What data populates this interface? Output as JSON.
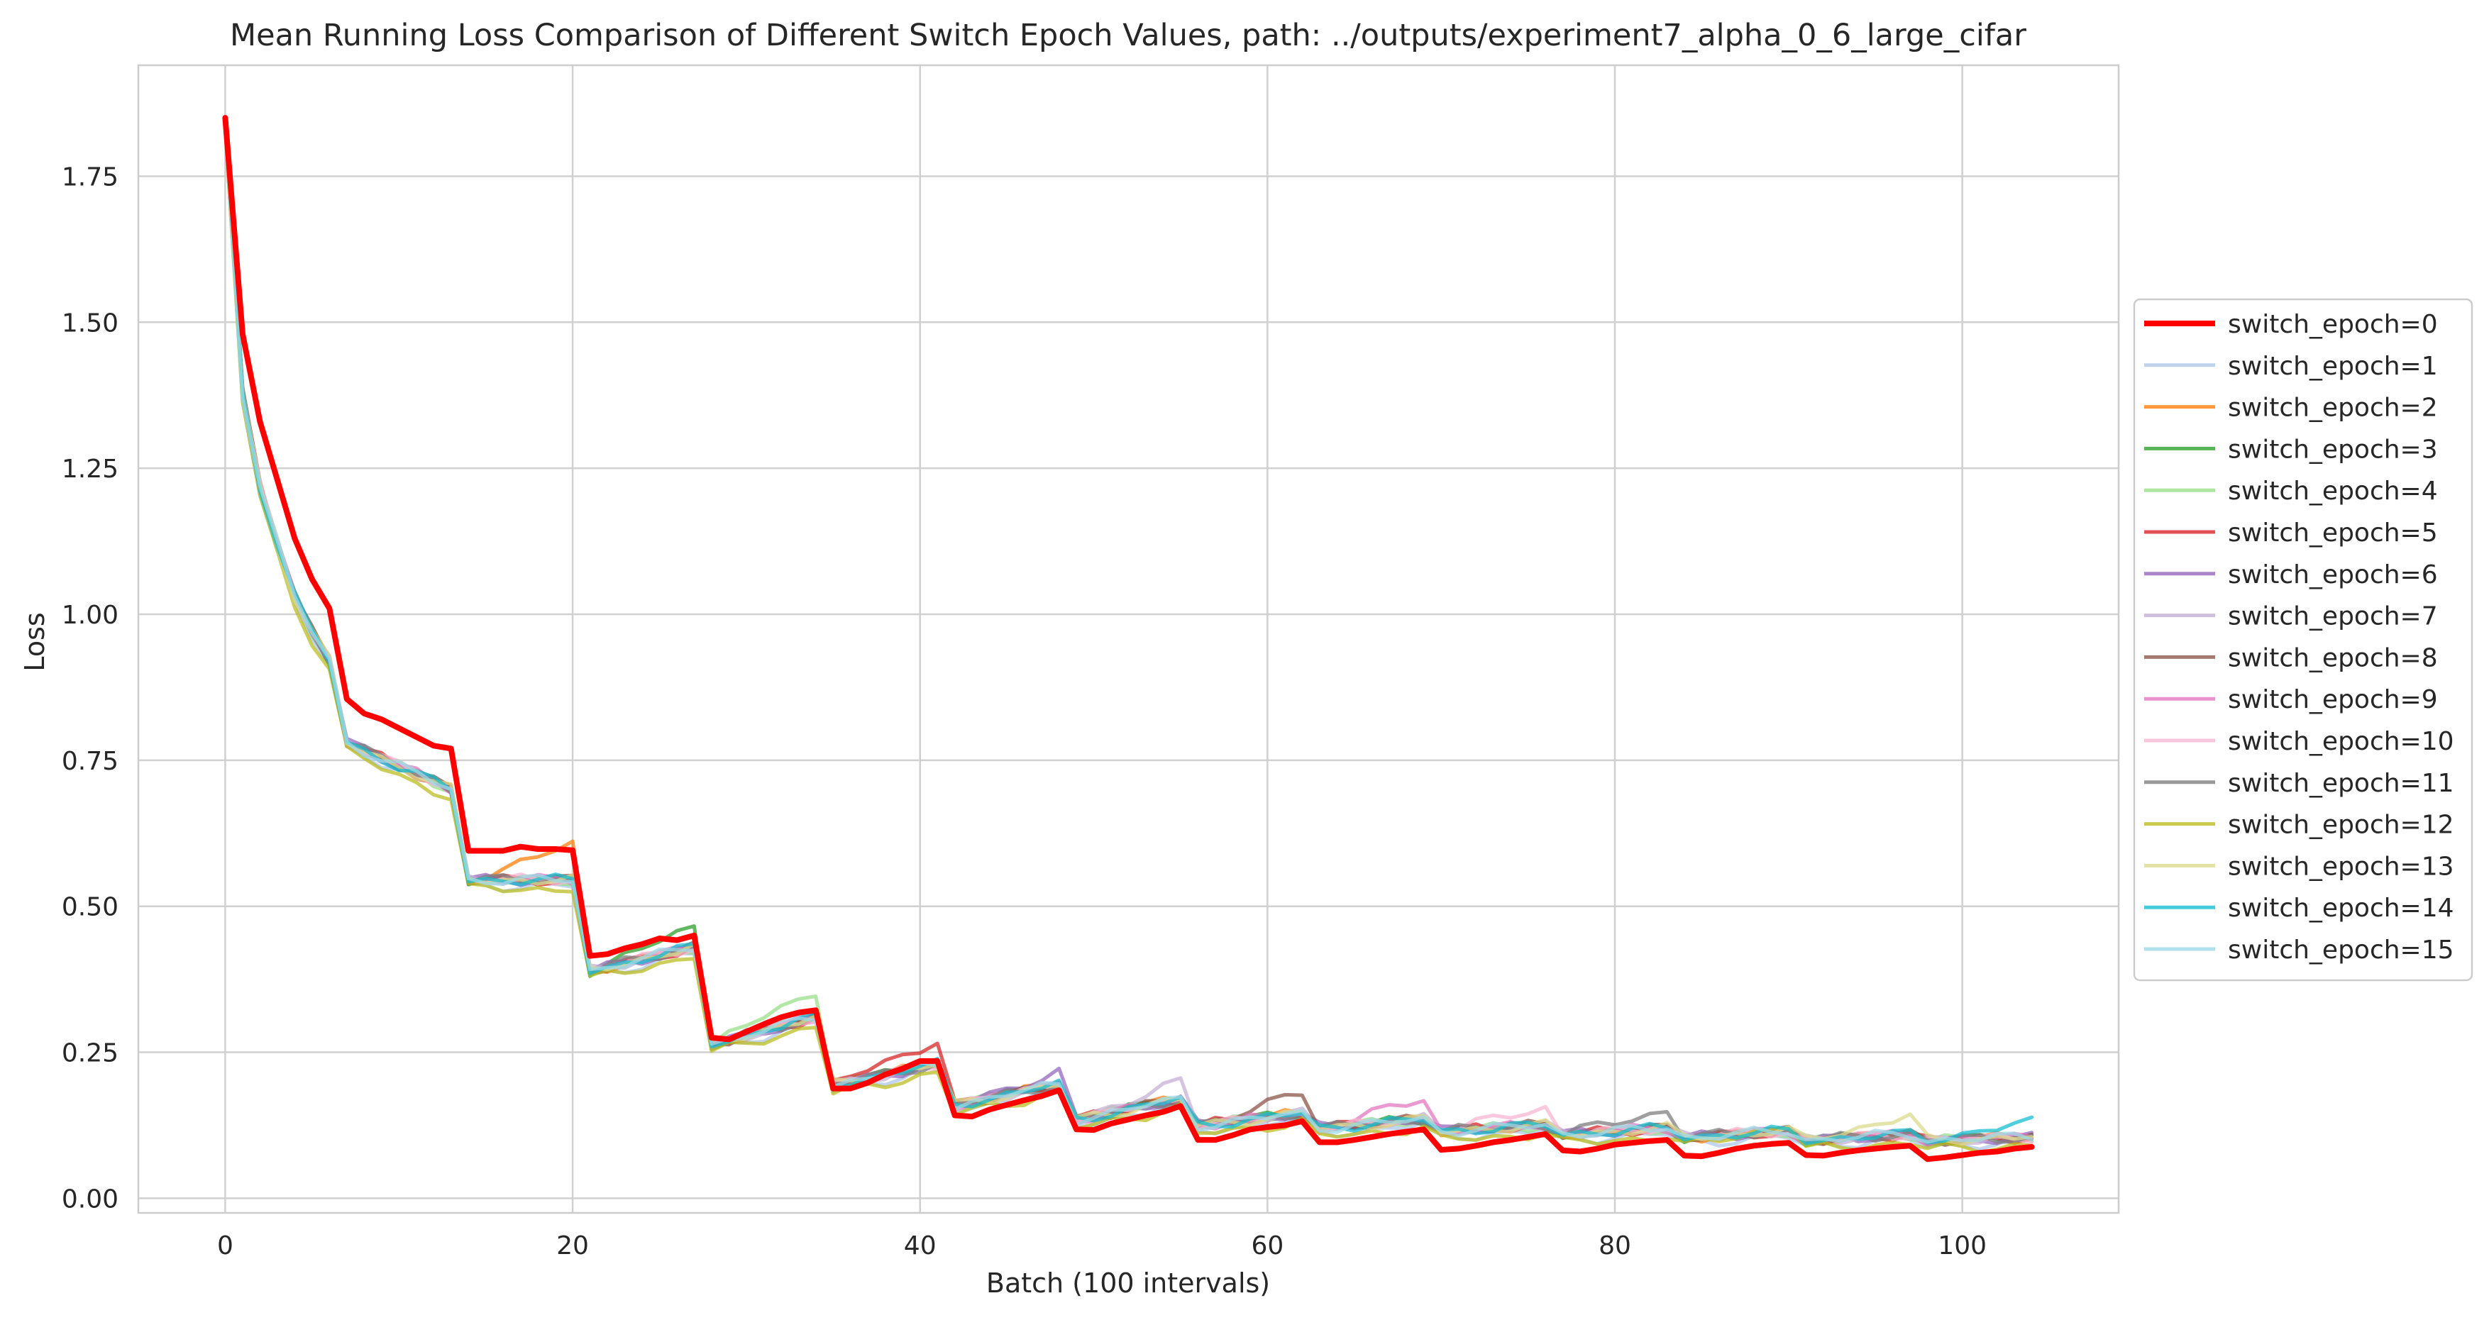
{
  "chart_data": {
    "type": "line",
    "title": "Mean Running Loss Comparison of Different Switch Epoch Values, path: ../outputs/experiment7_alpha_0_6_large_cifar",
    "xlabel": "Batch (100 intervals)",
    "ylabel": "Loss",
    "xlim": [
      -5,
      109
    ],
    "ylim": [
      -0.025,
      1.94
    ],
    "xticks": [
      0,
      20,
      40,
      60,
      80,
      100
    ],
    "yticks": [
      0.0,
      0.25,
      0.5,
      0.75,
      1.0,
      1.25,
      1.5,
      1.75
    ],
    "xtick_labels": [
      "0",
      "20",
      "40",
      "60",
      "80",
      "100"
    ],
    "ytick_labels": [
      "0.00",
      "0.25",
      "0.50",
      "0.75",
      "1.00",
      "1.25",
      "1.50",
      "1.75"
    ],
    "grid": true,
    "legend_position": "center-right outside",
    "background": "#ffffff",
    "grid_color": "#d0d0d0",
    "epoch_length": 7,
    "num_points": 105,
    "base_curve": [
      [
        0,
        1.84
      ],
      [
        1,
        1.38
      ],
      [
        2,
        1.22
      ],
      [
        3,
        1.12
      ],
      [
        4,
        1.03
      ],
      [
        5,
        0.97
      ],
      [
        6,
        0.92
      ],
      [
        7,
        0.78
      ],
      [
        13,
        0.7
      ],
      [
        14,
        0.545
      ],
      [
        20,
        0.545
      ],
      [
        21,
        0.39
      ],
      [
        27,
        0.43
      ],
      [
        28,
        0.265
      ],
      [
        34,
        0.31
      ],
      [
        35,
        0.195
      ],
      [
        41,
        0.23
      ],
      [
        42,
        0.16
      ],
      [
        48,
        0.195
      ],
      [
        49,
        0.135
      ],
      [
        55,
        0.17
      ],
      [
        56,
        0.125
      ],
      [
        62,
        0.145
      ],
      [
        63,
        0.12
      ],
      [
        69,
        0.135
      ],
      [
        70,
        0.115
      ],
      [
        76,
        0.125
      ],
      [
        77,
        0.11
      ],
      [
        83,
        0.12
      ],
      [
        84,
        0.105
      ],
      [
        90,
        0.115
      ],
      [
        91,
        0.1
      ],
      [
        97,
        0.11
      ],
      [
        98,
        0.1
      ],
      [
        104,
        0.105
      ]
    ],
    "series": [
      {
        "name": "switch_epoch=0",
        "color": "#ff0000",
        "width": 3,
        "points": [
          [
            0,
            1.85
          ],
          [
            1,
            1.48
          ],
          [
            2,
            1.33
          ],
          [
            3,
            1.23
          ],
          [
            4,
            1.13
          ],
          [
            5,
            1.06
          ],
          [
            6,
            1.01
          ],
          [
            7,
            0.855
          ],
          [
            8,
            0.83
          ],
          [
            9,
            0.82
          ],
          [
            10,
            0.805
          ],
          [
            11,
            0.79
          ],
          [
            12,
            0.775
          ],
          [
            13,
            0.77
          ],
          [
            14,
            0.595
          ],
          [
            15,
            0.595
          ],
          [
            16,
            0.595
          ],
          [
            17,
            0.602
          ],
          [
            18,
            0.598
          ],
          [
            19,
            0.598
          ],
          [
            20,
            0.596
          ],
          [
            21,
            0.415
          ],
          [
            22,
            0.418
          ],
          [
            23,
            0.428
          ],
          [
            24,
            0.435
          ],
          [
            25,
            0.445
          ],
          [
            26,
            0.442
          ],
          [
            27,
            0.45
          ],
          [
            28,
            0.275
          ],
          [
            29,
            0.272
          ],
          [
            30,
            0.285
          ],
          [
            31,
            0.298
          ],
          [
            32,
            0.31
          ],
          [
            33,
            0.318
          ],
          [
            34,
            0.322
          ],
          [
            35,
            0.188
          ],
          [
            36,
            0.188
          ],
          [
            37,
            0.198
          ],
          [
            38,
            0.212
          ],
          [
            39,
            0.222
          ],
          [
            40,
            0.235
          ],
          [
            41,
            0.235
          ],
          [
            42,
            0.142
          ],
          [
            43,
            0.14
          ],
          [
            44,
            0.152
          ],
          [
            45,
            0.16
          ],
          [
            46,
            0.168
          ],
          [
            47,
            0.175
          ],
          [
            48,
            0.185
          ],
          [
            49,
            0.118
          ],
          [
            50,
            0.117
          ],
          [
            51,
            0.128
          ],
          [
            52,
            0.135
          ],
          [
            53,
            0.142
          ],
          [
            54,
            0.148
          ],
          [
            55,
            0.158
          ],
          [
            56,
            0.1
          ],
          [
            57,
            0.1
          ],
          [
            58,
            0.108
          ],
          [
            59,
            0.118
          ],
          [
            60,
            0.122
          ],
          [
            61,
            0.125
          ],
          [
            62,
            0.132
          ],
          [
            63,
            0.096
          ],
          [
            64,
            0.096
          ],
          [
            65,
            0.1
          ],
          [
            66,
            0.105
          ],
          [
            67,
            0.11
          ],
          [
            68,
            0.114
          ],
          [
            69,
            0.118
          ],
          [
            70,
            0.083
          ],
          [
            71,
            0.085
          ],
          [
            72,
            0.09
          ],
          [
            73,
            0.096
          ],
          [
            74,
            0.1
          ],
          [
            75,
            0.105
          ],
          [
            76,
            0.11
          ],
          [
            77,
            0.082
          ],
          [
            78,
            0.08
          ],
          [
            79,
            0.085
          ],
          [
            80,
            0.092
          ],
          [
            81,
            0.095
          ],
          [
            82,
            0.098
          ],
          [
            83,
            0.1
          ],
          [
            84,
            0.073
          ],
          [
            85,
            0.072
          ],
          [
            86,
            0.078
          ],
          [
            87,
            0.085
          ],
          [
            88,
            0.09
          ],
          [
            89,
            0.093
          ],
          [
            90,
            0.095
          ],
          [
            91,
            0.074
          ],
          [
            92,
            0.073
          ],
          [
            93,
            0.078
          ],
          [
            94,
            0.082
          ],
          [
            95,
            0.085
          ],
          [
            96,
            0.088
          ],
          [
            97,
            0.09
          ],
          [
            98,
            0.067
          ],
          [
            99,
            0.07
          ],
          [
            100,
            0.074
          ],
          [
            101,
            0.078
          ],
          [
            102,
            0.08
          ],
          [
            103,
            0.085
          ],
          [
            104,
            0.088
          ]
        ]
      },
      {
        "name": "switch_epoch=1",
        "color": "#aec7e8",
        "width": 2,
        "switch": 1,
        "bump": 0.01,
        "offset": -0.01
      },
      {
        "name": "switch_epoch=2",
        "color": "#ff7f0e",
        "width": 2,
        "switch": 2,
        "bump": 0.06,
        "offset": 0.0
      },
      {
        "name": "switch_epoch=3",
        "color": "#2ca02c",
        "width": 2,
        "switch": 3,
        "bump": 0.035,
        "offset": 0.0
      },
      {
        "name": "switch_epoch=4",
        "color": "#98df8a",
        "width": 2,
        "switch": 4,
        "bump": 0.045,
        "offset": 0.0
      },
      {
        "name": "switch_epoch=5",
        "color": "#d62728",
        "width": 2,
        "switch": 5,
        "bump": 0.04,
        "offset": 0.0
      },
      {
        "name": "switch_epoch=6",
        "color": "#9467bd",
        "width": 2,
        "switch": 6,
        "bump": 0.02,
        "offset": 0.0
      },
      {
        "name": "switch_epoch=7",
        "color": "#c5b0d5",
        "width": 2,
        "switch": 7,
        "bump": 0.03,
        "offset": 0.0
      },
      {
        "name": "switch_epoch=8",
        "color": "#8c564b",
        "width": 2,
        "switch": 8,
        "bump": 0.035,
        "offset": 0.0
      },
      {
        "name": "switch_epoch=9",
        "color": "#e377c2",
        "width": 2,
        "switch": 9,
        "bump": 0.035,
        "offset": 0.0
      },
      {
        "name": "switch_epoch=10",
        "color": "#f7b6d2",
        "width": 2,
        "switch": 10,
        "bump": 0.03,
        "offset": 0.0
      },
      {
        "name": "switch_epoch=11",
        "color": "#7f7f7f",
        "width": 2,
        "switch": 11,
        "bump": 0.03,
        "offset": 0.0
      },
      {
        "name": "switch_epoch=12",
        "color": "#bcbd22",
        "width": 2,
        "switch": 12,
        "bump": 0.025,
        "offset": -0.015
      },
      {
        "name": "switch_epoch=13",
        "color": "#dbdb8d",
        "width": 2,
        "switch": 13,
        "bump": 0.03,
        "offset": 0.0
      },
      {
        "name": "switch_epoch=14",
        "color": "#17becf",
        "width": 2,
        "switch": 14,
        "bump": 0.025,
        "offset": 0.0
      },
      {
        "name": "switch_epoch=15",
        "color": "#9edae5",
        "width": 2,
        "switch": 15,
        "bump": 0.0,
        "offset": 0.0
      }
    ]
  }
}
